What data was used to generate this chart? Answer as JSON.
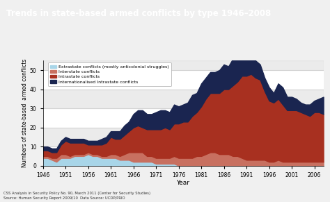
{
  "title": "Trends in state-based armed conflicts by type 1946–2008",
  "title_bg": "#cc1122",
  "xlabel": "Year",
  "ylabel": "Numbers of state-based  armed conflicts",
  "bg_color": "#f0f0f0",
  "plot_bg": "#ffffff",
  "years": [
    1946,
    1947,
    1948,
    1949,
    1950,
    1951,
    1952,
    1953,
    1954,
    1955,
    1956,
    1957,
    1958,
    1959,
    1960,
    1961,
    1962,
    1963,
    1964,
    1965,
    1966,
    1967,
    1968,
    1969,
    1970,
    1971,
    1972,
    1973,
    1974,
    1975,
    1976,
    1977,
    1978,
    1979,
    1980,
    1981,
    1982,
    1983,
    1984,
    1985,
    1986,
    1987,
    1988,
    1989,
    1990,
    1991,
    1992,
    1993,
    1994,
    1995,
    1996,
    1997,
    1998,
    1999,
    2000,
    2001,
    2002,
    2003,
    2004,
    2005,
    2006,
    2007,
    2008
  ],
  "extrastate": [
    4,
    4,
    3,
    2,
    4,
    4,
    4,
    5,
    5,
    5,
    6,
    5,
    5,
    4,
    4,
    4,
    4,
    3,
    3,
    3,
    2,
    2,
    2,
    2,
    2,
    1,
    1,
    1,
    1,
    1,
    0,
    0,
    0,
    0,
    0,
    0,
    0,
    0,
    0,
    0,
    0,
    0,
    0,
    0,
    0,
    0,
    0,
    0,
    0,
    0,
    0,
    0,
    0,
    0,
    0,
    0,
    0,
    0,
    0,
    0,
    0,
    0,
    0
  ],
  "interstate": [
    1,
    1,
    1,
    2,
    2,
    2,
    1,
    1,
    1,
    1,
    1,
    1,
    1,
    1,
    1,
    2,
    2,
    2,
    3,
    4,
    5,
    5,
    5,
    3,
    3,
    3,
    3,
    3,
    3,
    4,
    4,
    4,
    4,
    4,
    5,
    5,
    6,
    7,
    7,
    6,
    6,
    6,
    5,
    5,
    4,
    3,
    3,
    3,
    3,
    3,
    2,
    2,
    3,
    2,
    2,
    2,
    2,
    2,
    2,
    2,
    2,
    2,
    2
  ],
  "intrastate": [
    3,
    3,
    3,
    3,
    5,
    7,
    7,
    6,
    6,
    6,
    4,
    5,
    5,
    6,
    7,
    9,
    8,
    9,
    10,
    11,
    13,
    14,
    13,
    14,
    14,
    15,
    15,
    16,
    15,
    17,
    18,
    19,
    19,
    22,
    23,
    26,
    29,
    31,
    31,
    32,
    34,
    34,
    37,
    39,
    43,
    44,
    45,
    43,
    42,
    36,
    32,
    31,
    32,
    30,
    27,
    27,
    27,
    26,
    25,
    24,
    26,
    26,
    25
  ],
  "intrastate_intl": [
    2,
    2,
    2,
    2,
    2,
    2,
    2,
    2,
    2,
    2,
    2,
    2,
    2,
    3,
    3,
    3,
    4,
    4,
    5,
    5,
    7,
    8,
    9,
    8,
    8,
    9,
    10,
    9,
    9,
    10,
    9,
    9,
    10,
    11,
    10,
    12,
    11,
    11,
    11,
    12,
    13,
    12,
    14,
    12,
    11,
    11,
    9,
    9,
    8,
    7,
    7,
    5,
    8,
    9,
    7,
    7,
    6,
    5,
    5,
    6,
    6,
    7,
    9
  ],
  "color_extrastate": "#a8d5e8",
  "color_interstate": "#c87060",
  "color_intrastate": "#a83020",
  "color_intrastate_intl": "#1a2550",
  "ylim": [
    0,
    55
  ],
  "yticks": [
    0,
    10,
    20,
    30,
    40,
    50
  ],
  "footer_text": "CSS Analysis in Security Policy No. 90, March 2011 (Center for Security Studies)\nSource: Human Security Report 2009/10  Data Source: UCDP/PRIO",
  "legend_labels": [
    "Extrastate conflicts (mostly anticolonial struggles)",
    "Interstate conflicts",
    "Intrastate conflicts",
    "Internationalised Intrastate conflicts"
  ]
}
